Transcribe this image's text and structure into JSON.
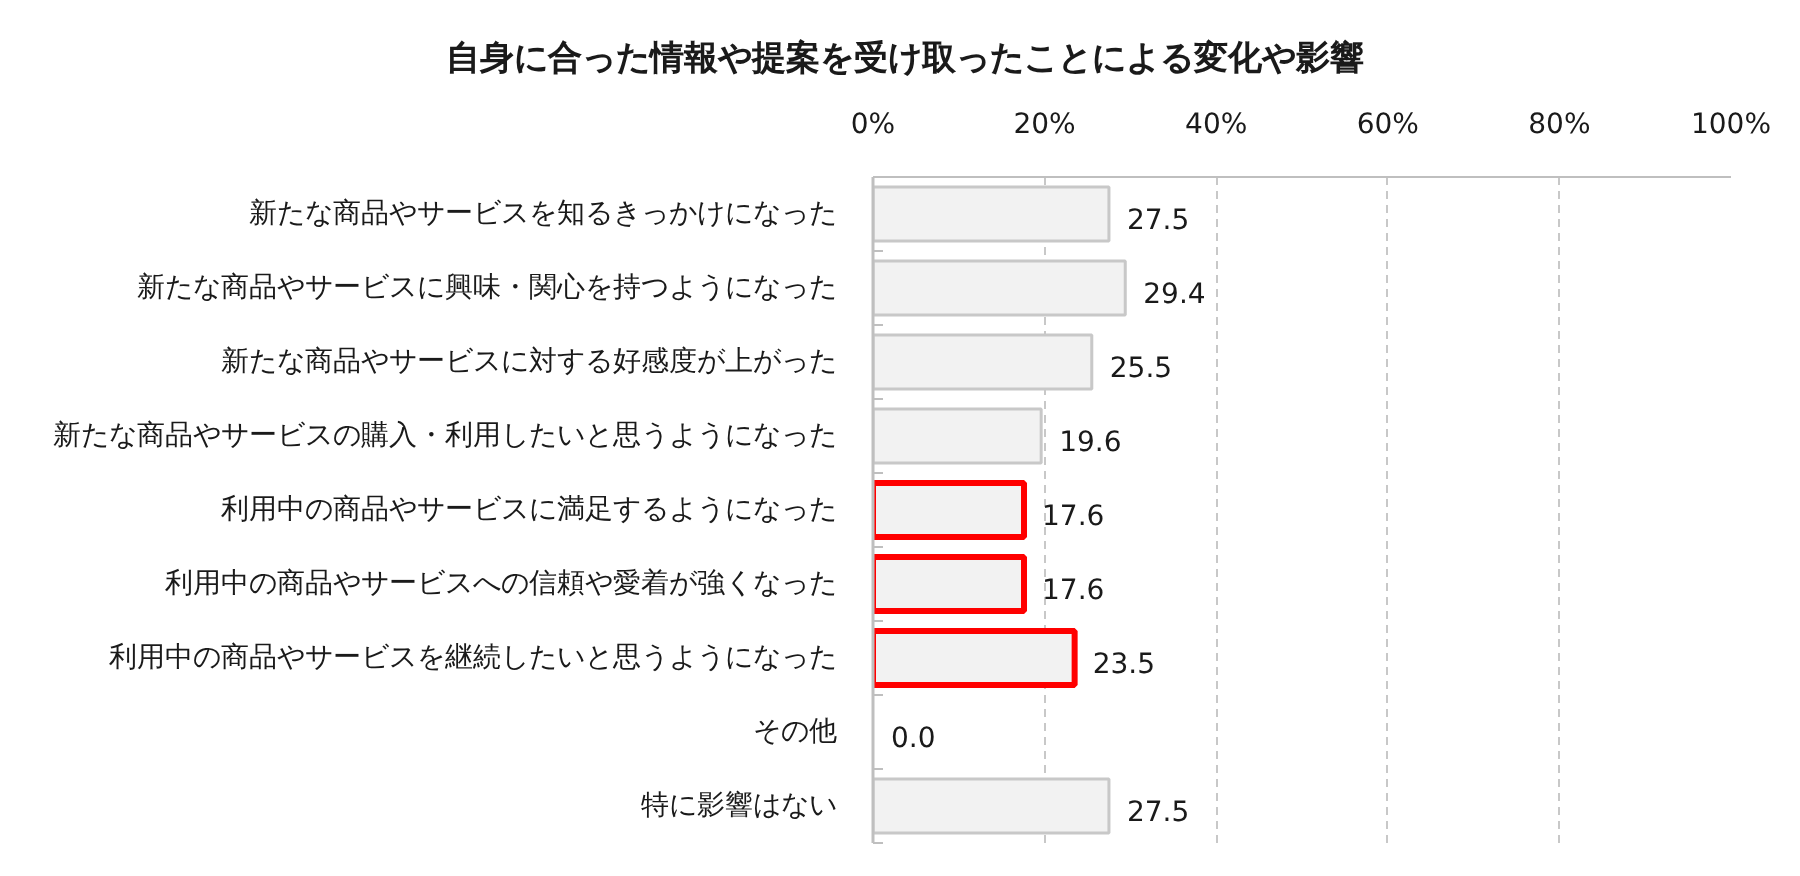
{
  "chart_data": {
    "type": "bar",
    "orientation": "horizontal",
    "title": "自身に合った情報や提案を受け取ったことによる変化や影響",
    "categories": [
      "新たな商品やサービスを知るきっかけになった",
      "新たな商品やサービスに興味・関心を持つようになった",
      "新たな商品やサービスに対する好感度が上がった",
      "新たな商品やサービスの購入・利用したいと思うようになった",
      "利用中の商品やサービスに満足するようになった",
      "利用中の商品やサービスへの信頼や愛着が強くなった",
      "利用中の商品やサービスを継続したいと思うようになった",
      "その他",
      "特に影響はない"
    ],
    "values": [
      27.5,
      29.4,
      25.5,
      19.6,
      17.6,
      17.6,
      23.5,
      0.0,
      27.5
    ],
    "value_labels": [
      "27.5",
      "29.4",
      "25.5",
      "19.6",
      "17.6",
      "17.6",
      "23.5",
      "0.0",
      "27.5"
    ],
    "color": "#f2f2f2",
    "xlim": [
      0,
      100
    ],
    "xticks": [
      {
        "value": 0,
        "label": "0%"
      },
      {
        "value": 20,
        "label": "20%"
      },
      {
        "value": 40,
        "label": "40%"
      },
      {
        "value": 60,
        "label": "60%"
      },
      {
        "value": 80,
        "label": "80%"
      },
      {
        "value": 100,
        "label": "100%"
      }
    ],
    "grid": "x"
  }
}
